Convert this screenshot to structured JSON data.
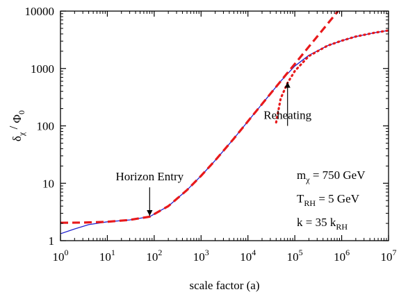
{
  "chart_data": {
    "type": "line",
    "xscale": "log",
    "yscale": "log",
    "xlim": [
      1,
      10000000
    ],
    "ylim": [
      1,
      10000
    ],
    "xlabel": "scale factor (a)",
    "x_ticks": [
      {
        "value": 1,
        "base": "10",
        "exp": "0"
      },
      {
        "value": 10,
        "base": "10",
        "exp": "1"
      },
      {
        "value": 100,
        "base": "10",
        "exp": "2"
      },
      {
        "value": 1000,
        "base": "10",
        "exp": "3"
      },
      {
        "value": 10000,
        "base": "10",
        "exp": "4"
      },
      {
        "value": 100000,
        "base": "10",
        "exp": "5"
      },
      {
        "value": 1000000,
        "base": "10",
        "exp": "6"
      },
      {
        "value": 10000000,
        "base": "10",
        "exp": "7"
      }
    ],
    "y_ticks": [
      {
        "value": 1,
        "label": "1"
      },
      {
        "value": 10,
        "label": "10"
      },
      {
        "value": 100,
        "label": "100"
      },
      {
        "value": 1000,
        "label": "1000"
      },
      {
        "value": 10000,
        "label": "10000"
      }
    ],
    "ylabel": {
      "delta": "δ",
      "delta_sub": "χ",
      "slash": " / ",
      "phi": "Φ",
      "phi_sub": "0"
    },
    "series": [
      {
        "style": "solid",
        "color": "#1f1fcf",
        "x": [
          1,
          2,
          4,
          10,
          30,
          80,
          200,
          500,
          1000,
          2000,
          5000,
          10000,
          20000,
          50000,
          100000,
          200000,
          500000,
          1000000,
          2000000,
          5000000,
          10000000
        ],
        "y": [
          1.32,
          1.6,
          1.9,
          2.13,
          2.3,
          2.62,
          4.0,
          7.6,
          13.5,
          25,
          60,
          120,
          240,
          600,
          1100,
          1700,
          2500,
          3050,
          3600,
          4200,
          4600
        ]
      },
      {
        "style": "dashed",
        "color": "#e8191b",
        "x": [
          1,
          3,
          10,
          30,
          80,
          200,
          500,
          1000,
          2000,
          5000,
          10000,
          20000,
          50000,
          100000,
          200000,
          500000,
          1000000
        ],
        "y": [
          2.05,
          2.07,
          2.13,
          2.3,
          2.62,
          4.0,
          7.6,
          13.5,
          25,
          60,
          120,
          240,
          600,
          1200,
          2400,
          6000,
          12000
        ]
      },
      {
        "style": "dotted",
        "color": "#e8191b",
        "x": [
          40000,
          50000,
          70000,
          100000,
          200000,
          500000,
          1000000,
          2000000,
          5000000,
          10000000
        ],
        "y": [
          115,
          300,
          560,
          900,
          1650,
          2500,
          3050,
          3600,
          4200,
          4600
        ]
      }
    ],
    "annotations": [
      {
        "text": "Horizon Entry",
        "x": 80,
        "arrow_from_y": 8.5,
        "arrow_to_y": 2.7
      },
      {
        "text": "Reheating",
        "x": 70000,
        "arrow_from_y": 100,
        "arrow_to_y": 580
      }
    ],
    "legend": {
      "placement": "bottom-right",
      "lines": [
        {
          "main": "m",
          "sub": "χ",
          "rest": " = 750 GeV"
        },
        {
          "main": "T",
          "sub": "RH",
          "rest": " = 5 GeV"
        },
        {
          "main": "k = 35 k",
          "sub": "RH",
          "rest": ""
        }
      ]
    }
  }
}
